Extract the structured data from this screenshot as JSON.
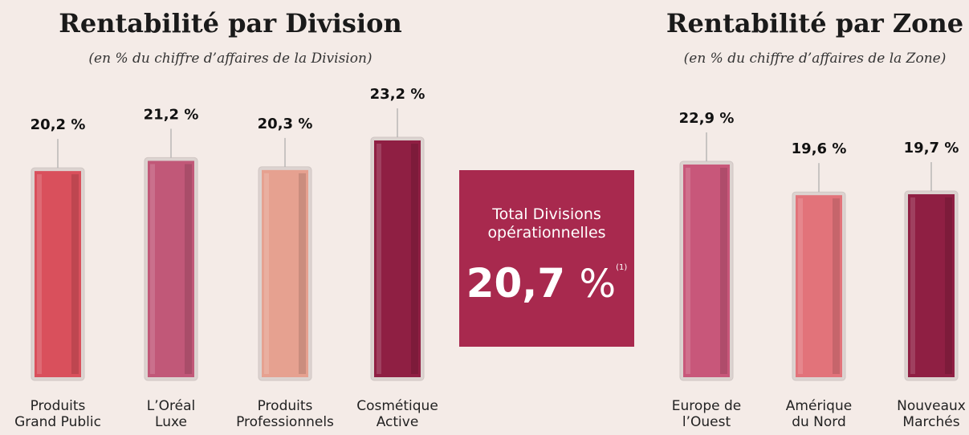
{
  "chart_data": [
    {
      "type": "bar",
      "title": "Rentabilité par Division",
      "subtitle": "(en % du chiffre d’affaires de la Division)",
      "categories": [
        "Produits\nGrand Public",
        "L’Oréal\nLuxe",
        "Produits\nProfessionnels",
        "Cosmétique\nActive"
      ],
      "values": [
        20.2,
        21.2,
        20.3,
        23.2
      ],
      "value_labels": [
        "20,2 %",
        "21,2 %",
        "20,3 %",
        "23,2 %"
      ],
      "colors": [
        "#d9505c",
        "#c15878",
        "#e6a190",
        "#8f1f43"
      ]
    },
    {
      "type": "bar",
      "title": "Rentabilité par Zone",
      "subtitle": "(en % du chiffre d’affaires de la Zone)",
      "categories": [
        "Europe de\nl’Ouest",
        "Amérique\ndu Nord",
        "Nouveaux\nMarchés"
      ],
      "values": [
        22.9,
        19.6,
        19.7
      ],
      "value_labels": [
        "22,9 %",
        "19,6 %",
        "19,7 %"
      ],
      "colors": [
        "#c8577a",
        "#e2737a",
        "#8f1f43"
      ]
    }
  ],
  "callout": {
    "label": "Total Divisions opérationnelles",
    "value_label": "20,7",
    "unit": "%",
    "footnote": "(1)"
  }
}
